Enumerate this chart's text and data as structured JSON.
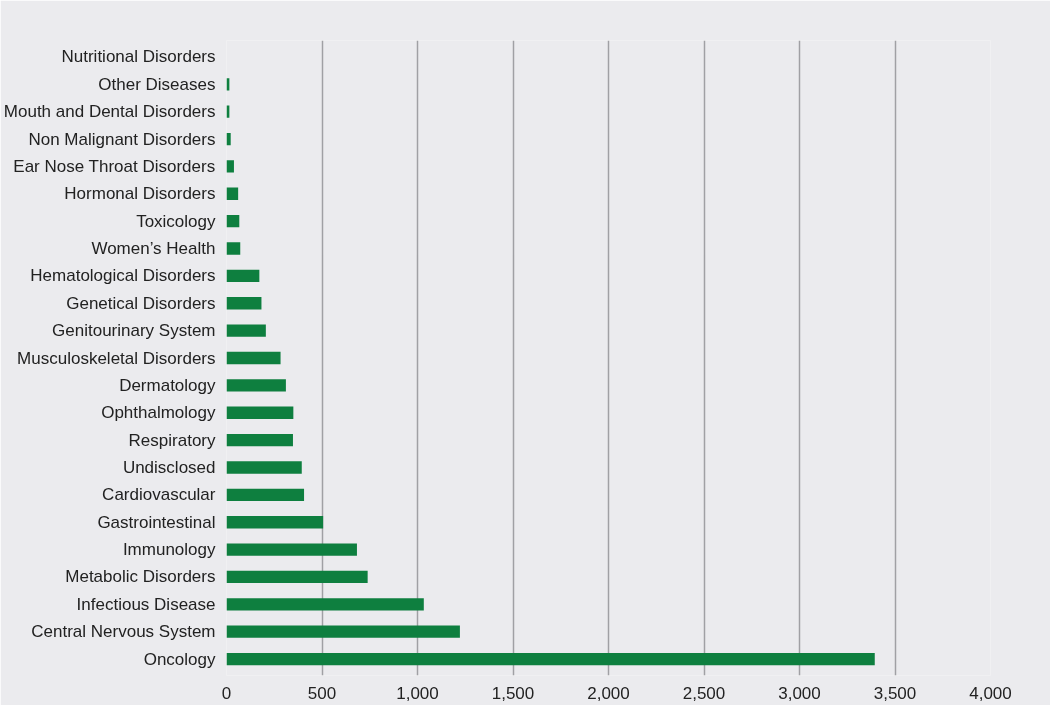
{
  "chart_data": {
    "type": "bar",
    "orientation": "horizontal",
    "categories": [
      "Nutritional Disorders",
      "Other Diseases",
      "Mouth and Dental Disorders",
      "Non Malignant Disorders",
      "Ear Nose Throat Disorders",
      "Hormonal Disorders",
      "Toxicology",
      "Women’s Health",
      "Hematological Disorders",
      "Genetical Disorders",
      "Genitourinary System",
      "Musculoskeletal Disorders",
      "Dermatology",
      "Ophthalmology",
      "Respiratory",
      "Undisclosed",
      "Cardiovascular",
      "Gastrointestinal",
      "Immunology",
      "Metabolic Disorders",
      "Infectious Disease",
      "Central Nervous System",
      "Oncology"
    ],
    "values": [
      0,
      15,
      15,
      22,
      39,
      61,
      67,
      72,
      172,
      183,
      206,
      283,
      311,
      350,
      348,
      394,
      406,
      506,
      683,
      739,
      1033,
      1222,
      3394
    ],
    "color": "#0e7f3f",
    "xlim": [
      0,
      4000
    ],
    "xticks": [
      {
        "value": 0,
        "label": "0"
      },
      {
        "value": 500,
        "label": "500"
      },
      {
        "value": 1000,
        "label": "1,000"
      },
      {
        "value": 1500,
        "label": "1,500"
      },
      {
        "value": 2000,
        "label": "2,000"
      },
      {
        "value": 2500,
        "label": "2,500"
      },
      {
        "value": 3000,
        "label": "3,000"
      },
      {
        "value": 3500,
        "label": "3,500"
      },
      {
        "value": 4000,
        "label": "4,000"
      }
    ],
    "grid": "x"
  }
}
